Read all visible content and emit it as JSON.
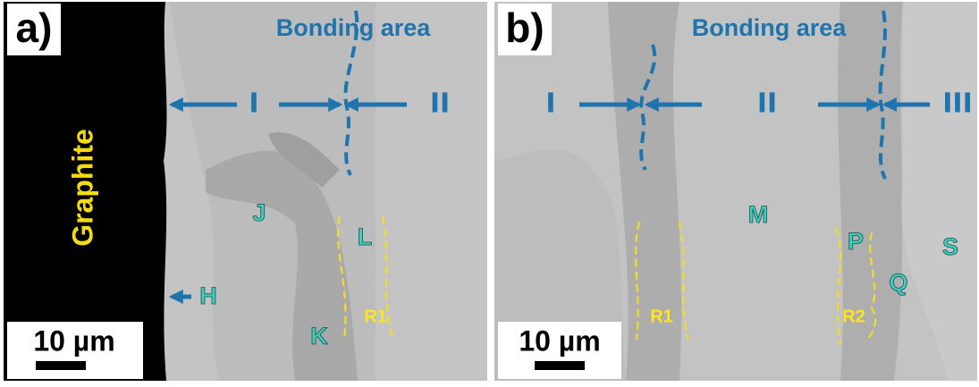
{
  "panels": [
    {
      "label": "a)",
      "title": "Bonding area",
      "side_label": "Graphite",
      "zones": [
        "I",
        "II"
      ],
      "phases": [
        "J",
        "L",
        "H",
        "K"
      ],
      "regions": [
        "R1"
      ],
      "scale_bar": "10 µm"
    },
    {
      "label": "b)",
      "title": "Bonding area",
      "zones": [
        "I",
        "II",
        "III"
      ],
      "phases": [
        "M",
        "P",
        "S",
        "Q"
      ],
      "regions": [
        "R1",
        "R2"
      ],
      "scale_bar": "10 µm"
    }
  ]
}
